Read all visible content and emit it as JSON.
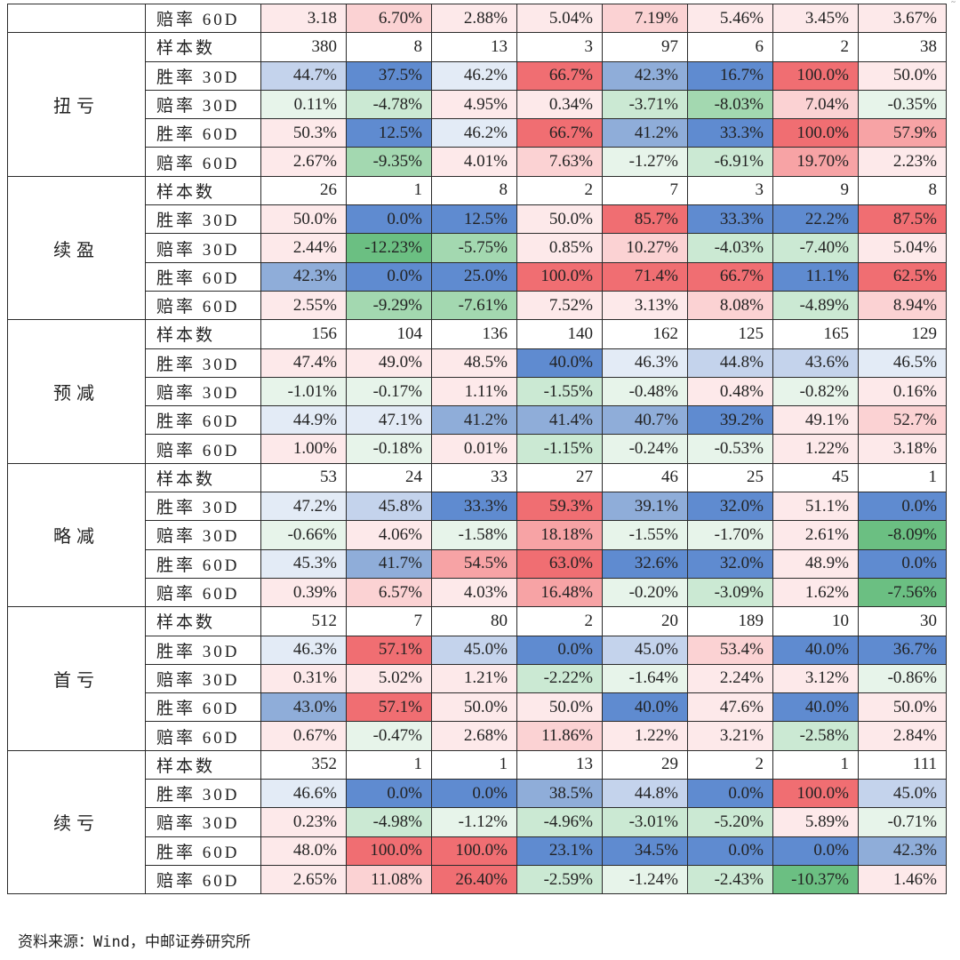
{
  "colors": {
    "blue_strong": "#5f8bd0",
    "blue_mid": "#8fadd9",
    "blue_light": "#c4d3ec",
    "blue_faint": "#e3ebf6",
    "red_strong": "#f06e72",
    "red_mid": "#f7a3a5",
    "red_light": "#fbd2d3",
    "red_faint": "#fde9ea",
    "green_strong": "#6bbf82",
    "green_mid": "#a3d8b0",
    "green_light": "#cbe9d3",
    "green_faint": "#e7f4ea",
    "white": "#ffffff"
  },
  "top_row": {
    "metric": "赔率 60D",
    "values": [
      "3.18",
      "6.70%",
      "2.88%",
      "5.04%",
      "7.19%",
      "5.46%",
      "3.45%",
      "3.67%"
    ],
    "tones": [
      "rf",
      "rl",
      "rf",
      "rf",
      "rl",
      "rf",
      "rf",
      "rf"
    ]
  },
  "groups": [
    {
      "name": "扭亏",
      "rows": [
        {
          "metric": "样本数",
          "values": [
            "380",
            "8",
            "13",
            "3",
            "97",
            "6",
            "2",
            "38"
          ],
          "tones": [
            "w",
            "w",
            "w",
            "w",
            "w",
            "w",
            "w",
            "w"
          ]
        },
        {
          "metric": "胜率 30D",
          "values": [
            "44.7%",
            "37.5%",
            "46.2%",
            "66.7%",
            "42.3%",
            "16.7%",
            "100.0%",
            "50.0%"
          ],
          "tones": [
            "bl",
            "bs",
            "bf",
            "rs",
            "bm",
            "bs",
            "rs",
            "rf"
          ]
        },
        {
          "metric": "赔率 30D",
          "values": [
            "0.11%",
            "-4.78%",
            "4.95%",
            "0.34%",
            "-3.71%",
            "-8.03%",
            "7.04%",
            "-0.35%"
          ],
          "tones": [
            "gf",
            "gl",
            "rf",
            "rf",
            "gl",
            "gm",
            "rl",
            "gf"
          ]
        },
        {
          "metric": "胜率 60D",
          "values": [
            "50.3%",
            "12.5%",
            "46.2%",
            "66.7%",
            "41.2%",
            "33.3%",
            "100.0%",
            "57.9%"
          ],
          "tones": [
            "rf",
            "bs",
            "bf",
            "rs",
            "bm",
            "bs",
            "rs",
            "rm"
          ]
        },
        {
          "metric": "赔率 60D",
          "values": [
            "2.67%",
            "-9.35%",
            "4.01%",
            "7.63%",
            "-1.27%",
            "-6.91%",
            "19.70%",
            "2.23%"
          ],
          "tones": [
            "rf",
            "gm",
            "rf",
            "rl",
            "gf",
            "gl",
            "rm",
            "rf"
          ]
        }
      ]
    },
    {
      "name": "续盈",
      "rows": [
        {
          "metric": "样本数",
          "values": [
            "26",
            "1",
            "8",
            "2",
            "7",
            "3",
            "9",
            "8"
          ],
          "tones": [
            "w",
            "w",
            "w",
            "w",
            "w",
            "w",
            "w",
            "w"
          ]
        },
        {
          "metric": "胜率 30D",
          "values": [
            "50.0%",
            "0.0%",
            "12.5%",
            "50.0%",
            "85.7%",
            "33.3%",
            "22.2%",
            "87.5%"
          ],
          "tones": [
            "rf",
            "bs",
            "bs",
            "rf",
            "rs",
            "bs",
            "bs",
            "rs"
          ]
        },
        {
          "metric": "赔率 30D",
          "values": [
            "2.44%",
            "-12.23%",
            "-5.75%",
            "0.85%",
            "10.27%",
            "-4.03%",
            "-7.40%",
            "5.04%"
          ],
          "tones": [
            "rf",
            "gs",
            "gm",
            "rf",
            "rl",
            "gl",
            "gl",
            "rf"
          ]
        },
        {
          "metric": "胜率 60D",
          "values": [
            "42.3%",
            "0.0%",
            "25.0%",
            "100.0%",
            "71.4%",
            "66.7%",
            "11.1%",
            "62.5%"
          ],
          "tones": [
            "bm",
            "bs",
            "bs",
            "rs",
            "rs",
            "rs",
            "bs",
            "rs"
          ]
        },
        {
          "metric": "赔率 60D",
          "values": [
            "2.55%",
            "-9.29%",
            "-7.61%",
            "7.52%",
            "3.13%",
            "8.08%",
            "-4.89%",
            "8.94%"
          ],
          "tones": [
            "rf",
            "gm",
            "gm",
            "rf",
            "rf",
            "rl",
            "gl",
            "rl"
          ]
        }
      ]
    },
    {
      "name": "预减",
      "rows": [
        {
          "metric": "样本数",
          "values": [
            "156",
            "104",
            "136",
            "140",
            "162",
            "125",
            "165",
            "129"
          ],
          "tones": [
            "w",
            "w",
            "w",
            "w",
            "w",
            "w",
            "w",
            "w"
          ]
        },
        {
          "metric": "胜率 30D",
          "values": [
            "47.4%",
            "49.0%",
            "48.5%",
            "40.0%",
            "46.3%",
            "44.8%",
            "43.6%",
            "46.5%"
          ],
          "tones": [
            "rf",
            "rf",
            "rf",
            "bs",
            "bf",
            "bl",
            "bl",
            "bf"
          ]
        },
        {
          "metric": "赔率 30D",
          "values": [
            "-1.01%",
            "-0.17%",
            "1.11%",
            "-1.55%",
            "-0.48%",
            "0.48%",
            "-0.82%",
            "0.16%"
          ],
          "tones": [
            "gf",
            "gf",
            "rf",
            "gl",
            "gf",
            "rf",
            "gf",
            "rf"
          ]
        },
        {
          "metric": "胜率 60D",
          "values": [
            "44.9%",
            "47.1%",
            "41.2%",
            "41.4%",
            "40.7%",
            "39.2%",
            "49.1%",
            "52.7%"
          ],
          "tones": [
            "bf",
            "bf",
            "bm",
            "bm",
            "bm",
            "bs",
            "rf",
            "rl"
          ]
        },
        {
          "metric": "赔率 60D",
          "values": [
            "1.00%",
            "-0.18%",
            "0.01%",
            "-1.15%",
            "-0.24%",
            "-0.53%",
            "1.22%",
            "3.18%"
          ],
          "tones": [
            "rf",
            "gf",
            "rf",
            "gl",
            "gf",
            "gf",
            "rf",
            "rf"
          ]
        }
      ]
    },
    {
      "name": "略减",
      "rows": [
        {
          "metric": "样本数",
          "values": [
            "53",
            "24",
            "33",
            "27",
            "46",
            "25",
            "45",
            "1"
          ],
          "tones": [
            "w",
            "w",
            "w",
            "w",
            "w",
            "w",
            "w",
            "w"
          ]
        },
        {
          "metric": "胜率 30D",
          "values": [
            "47.2%",
            "45.8%",
            "33.3%",
            "59.3%",
            "39.1%",
            "32.0%",
            "51.1%",
            "0.0%"
          ],
          "tones": [
            "bf",
            "bl",
            "bs",
            "rs",
            "bm",
            "bs",
            "rf",
            "bs"
          ]
        },
        {
          "metric": "赔率 30D",
          "values": [
            "-0.66%",
            "4.06%",
            "-1.58%",
            "18.18%",
            "-1.55%",
            "-1.70%",
            "2.61%",
            "-8.09%"
          ],
          "tones": [
            "gf",
            "rf",
            "gf",
            "rm",
            "gf",
            "gf",
            "rf",
            "gs"
          ]
        },
        {
          "metric": "胜率 60D",
          "values": [
            "45.3%",
            "41.7%",
            "54.5%",
            "63.0%",
            "32.6%",
            "32.0%",
            "48.9%",
            "0.0%"
          ],
          "tones": [
            "bf",
            "bm",
            "rm",
            "rs",
            "bs",
            "bs",
            "rf",
            "bs"
          ]
        },
        {
          "metric": "赔率 60D",
          "values": [
            "0.39%",
            "6.57%",
            "4.03%",
            "16.48%",
            "-0.20%",
            "-3.09%",
            "1.62%",
            "-7.56%"
          ],
          "tones": [
            "rf",
            "rl",
            "rf",
            "rm",
            "gf",
            "gl",
            "rf",
            "gs"
          ]
        }
      ]
    },
    {
      "name": "首亏",
      "rows": [
        {
          "metric": "样本数",
          "values": [
            "512",
            "7",
            "80",
            "2",
            "20",
            "189",
            "10",
            "30"
          ],
          "tones": [
            "w",
            "w",
            "w",
            "w",
            "w",
            "w",
            "w",
            "w"
          ]
        },
        {
          "metric": "胜率 30D",
          "values": [
            "46.3%",
            "57.1%",
            "45.0%",
            "0.0%",
            "45.0%",
            "53.4%",
            "40.0%",
            "36.7%"
          ],
          "tones": [
            "bf",
            "rs",
            "bl",
            "bs",
            "bl",
            "rl",
            "bs",
            "bs"
          ]
        },
        {
          "metric": "赔率 30D",
          "values": [
            "0.31%",
            "5.02%",
            "1.21%",
            "-2.22%",
            "-1.64%",
            "2.24%",
            "3.12%",
            "-0.86%"
          ],
          "tones": [
            "rf",
            "rf",
            "rf",
            "gl",
            "gf",
            "rf",
            "rf",
            "gf"
          ]
        },
        {
          "metric": "胜率 60D",
          "values": [
            "43.0%",
            "57.1%",
            "50.0%",
            "50.0%",
            "40.0%",
            "47.6%",
            "40.0%",
            "50.0%"
          ],
          "tones": [
            "bm",
            "rs",
            "rf",
            "rf",
            "bs",
            "rf",
            "bs",
            "rf"
          ]
        },
        {
          "metric": "赔率 60D",
          "values": [
            "0.67%",
            "-0.47%",
            "2.68%",
            "11.86%",
            "1.22%",
            "3.21%",
            "-2.58%",
            "2.84%"
          ],
          "tones": [
            "rf",
            "gf",
            "rf",
            "rl",
            "rf",
            "rf",
            "gl",
            "rf"
          ]
        }
      ]
    },
    {
      "name": "续亏",
      "rows": [
        {
          "metric": "样本数",
          "values": [
            "352",
            "1",
            "1",
            "13",
            "29",
            "2",
            "1",
            "111"
          ],
          "tones": [
            "w",
            "w",
            "w",
            "w",
            "w",
            "w",
            "w",
            "w"
          ]
        },
        {
          "metric": "胜率 30D",
          "values": [
            "46.6%",
            "0.0%",
            "0.0%",
            "38.5%",
            "44.8%",
            "0.0%",
            "100.0%",
            "45.0%"
          ],
          "tones": [
            "bf",
            "bs",
            "bs",
            "bm",
            "bl",
            "bs",
            "rs",
            "bl"
          ]
        },
        {
          "metric": "赔率 30D",
          "values": [
            "0.23%",
            "-4.98%",
            "-1.12%",
            "-4.96%",
            "-3.01%",
            "-5.20%",
            "5.89%",
            "-0.71%"
          ],
          "tones": [
            "rf",
            "gl",
            "gf",
            "gl",
            "gl",
            "gl",
            "rf",
            "gf"
          ]
        },
        {
          "metric": "胜率 60D",
          "values": [
            "48.0%",
            "100.0%",
            "100.0%",
            "23.1%",
            "34.5%",
            "0.0%",
            "0.0%",
            "42.3%"
          ],
          "tones": [
            "rf",
            "rs",
            "rs",
            "bs",
            "bs",
            "bs",
            "bs",
            "bm"
          ]
        },
        {
          "metric": "赔率 60D",
          "values": [
            "2.65%",
            "11.08%",
            "26.40%",
            "-2.59%",
            "-1.24%",
            "-2.43%",
            "-10.37%",
            "1.46%"
          ],
          "tones": [
            "rf",
            "rl",
            "rs",
            "gl",
            "gf",
            "gl",
            "gs",
            "rf"
          ]
        }
      ]
    }
  ],
  "source": "资料来源：Wind，中邮证券研究所",
  "corner_mark": "˜"
}
